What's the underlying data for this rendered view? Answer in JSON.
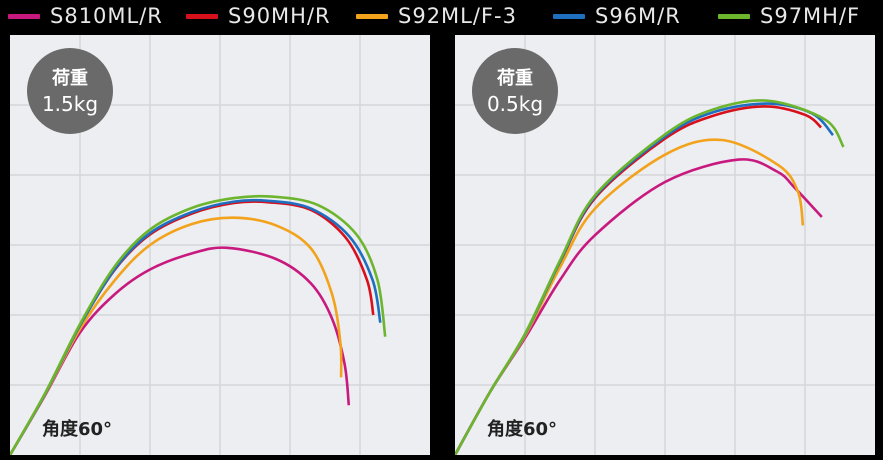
{
  "chart_data": [
    {
      "type": "line",
      "badge": {
        "line1": "荷重",
        "line2": "1.5kg"
      },
      "annotation": "角度60°",
      "xlim": [
        0,
        6
      ],
      "ylim": [
        0,
        6
      ],
      "grid": true,
      "series": [
        {
          "name": "S810ML/R",
          "color": "#c8197f",
          "points": [
            [
              0,
              0
            ],
            [
              0.5,
              0.85
            ],
            [
              1,
              1.75
            ],
            [
              1.5,
              2.3
            ],
            [
              2,
              2.65
            ],
            [
              2.6,
              2.88
            ],
            [
              3.1,
              2.96
            ],
            [
              3.8,
              2.8
            ],
            [
              4.3,
              2.45
            ],
            [
              4.6,
              1.95
            ],
            [
              4.78,
              1.3
            ],
            [
              4.84,
              0.71
            ]
          ]
        },
        {
          "name": "S90MH/R",
          "color": "#d7101c",
          "points": [
            [
              0,
              0
            ],
            [
              0.5,
              0.87
            ],
            [
              1,
              1.85
            ],
            [
              1.5,
              2.65
            ],
            [
              2,
              3.15
            ],
            [
              2.6,
              3.45
            ],
            [
              3.2,
              3.6
            ],
            [
              3.7,
              3.61
            ],
            [
              4.3,
              3.5
            ],
            [
              4.8,
              3.1
            ],
            [
              5.1,
              2.5
            ],
            [
              5.19,
              2.0
            ]
          ]
        },
        {
          "name": "S92ML/F-3",
          "color": "#f3a21c",
          "points": [
            [
              0,
              0
            ],
            [
              0.5,
              0.86
            ],
            [
              1,
              1.8
            ],
            [
              1.5,
              2.5
            ],
            [
              2,
              3.0
            ],
            [
              2.6,
              3.3
            ],
            [
              3.2,
              3.39
            ],
            [
              3.8,
              3.28
            ],
            [
              4.3,
              2.95
            ],
            [
              4.6,
              2.3
            ],
            [
              4.72,
              1.6
            ],
            [
              4.73,
              1.11
            ]
          ]
        },
        {
          "name": "S96M/R",
          "color": "#1f6fc0",
          "points": [
            [
              0,
              0
            ],
            [
              0.5,
              0.87
            ],
            [
              1,
              1.85
            ],
            [
              1.5,
              2.66
            ],
            [
              2,
              3.17
            ],
            [
              2.6,
              3.47
            ],
            [
              3.2,
              3.62
            ],
            [
              3.7,
              3.63
            ],
            [
              4.3,
              3.52
            ],
            [
              4.85,
              3.12
            ],
            [
              5.18,
              2.5
            ],
            [
              5.29,
              1.89
            ]
          ]
        },
        {
          "name": "S97MH/F",
          "color": "#6cb52d",
          "points": [
            [
              0,
              0
            ],
            [
              0.5,
              0.88
            ],
            [
              1,
              1.87
            ],
            [
              1.5,
              2.7
            ],
            [
              2,
              3.22
            ],
            [
              2.6,
              3.53
            ],
            [
              3.2,
              3.67
            ],
            [
              3.76,
              3.69
            ],
            [
              4.4,
              3.57
            ],
            [
              4.95,
              3.15
            ],
            [
              5.25,
              2.5
            ],
            [
              5.36,
              1.69
            ]
          ]
        }
      ]
    },
    {
      "type": "line",
      "badge": {
        "line1": "荷重",
        "line2": "0.5kg"
      },
      "annotation": "角度60°",
      "xlim": [
        0,
        6
      ],
      "ylim": [
        0,
        6
      ],
      "grid": true,
      "series": [
        {
          "name": "S810ML/R",
          "color": "#c8197f",
          "points": [
            [
              0,
              0
            ],
            [
              0.5,
              0.9
            ],
            [
              1,
              1.67
            ],
            [
              1.5,
              2.5
            ],
            [
              2,
              3.14
            ],
            [
              3,
              3.9
            ],
            [
              4.05,
              4.22
            ],
            [
              4.6,
              4.05
            ],
            [
              4.86,
              3.81
            ],
            [
              5.24,
              3.4
            ]
          ]
        },
        {
          "name": "S90MH/R",
          "color": "#d7101c",
          "points": [
            [
              0,
              0
            ],
            [
              0.5,
              0.9
            ],
            [
              1,
              1.72
            ],
            [
              1.5,
              2.75
            ],
            [
              2,
              3.67
            ],
            [
              3,
              4.52
            ],
            [
              3.7,
              4.85
            ],
            [
              4.43,
              4.98
            ],
            [
              5,
              4.86
            ],
            [
              5.23,
              4.68
            ]
          ]
        },
        {
          "name": "S92ML/F-3",
          "color": "#f3a21c",
          "points": [
            [
              0,
              0
            ],
            [
              0.5,
              0.9
            ],
            [
              1,
              1.7
            ],
            [
              1.5,
              2.68
            ],
            [
              2,
              3.52
            ],
            [
              3,
              4.29
            ],
            [
              3.81,
              4.5
            ],
            [
              4.62,
              4.14
            ],
            [
              4.9,
              3.76
            ],
            [
              4.97,
              3.28
            ]
          ]
        },
        {
          "name": "S96M/R",
          "color": "#1f6fc0",
          "points": [
            [
              0,
              0
            ],
            [
              0.5,
              0.9
            ],
            [
              1,
              1.72
            ],
            [
              1.5,
              2.76
            ],
            [
              2,
              3.69
            ],
            [
              3,
              4.55
            ],
            [
              3.7,
              4.9
            ],
            [
              4.48,
              5.02
            ],
            [
              5.1,
              4.88
            ],
            [
              5.4,
              4.57
            ]
          ]
        },
        {
          "name": "S97MH/F",
          "color": "#6cb52d",
          "points": [
            [
              0,
              0
            ],
            [
              0.5,
              0.9
            ],
            [
              1,
              1.73
            ],
            [
              1.5,
              2.78
            ],
            [
              2,
              3.71
            ],
            [
              3,
              4.58
            ],
            [
              3.7,
              4.94
            ],
            [
              4.48,
              5.06
            ],
            [
              5.29,
              4.79
            ],
            [
              5.55,
              4.4
            ]
          ]
        }
      ]
    }
  ],
  "legend": [
    {
      "label": "S810ML/R",
      "color": "#c8197f"
    },
    {
      "label": "S90MH/R",
      "color": "#d7101c"
    },
    {
      "label": "S92ML/F-3",
      "color": "#f3a21c"
    },
    {
      "label": "S96M/R",
      "color": "#1f6fc0"
    },
    {
      "label": "S97MH/F",
      "color": "#6cb52d"
    }
  ]
}
